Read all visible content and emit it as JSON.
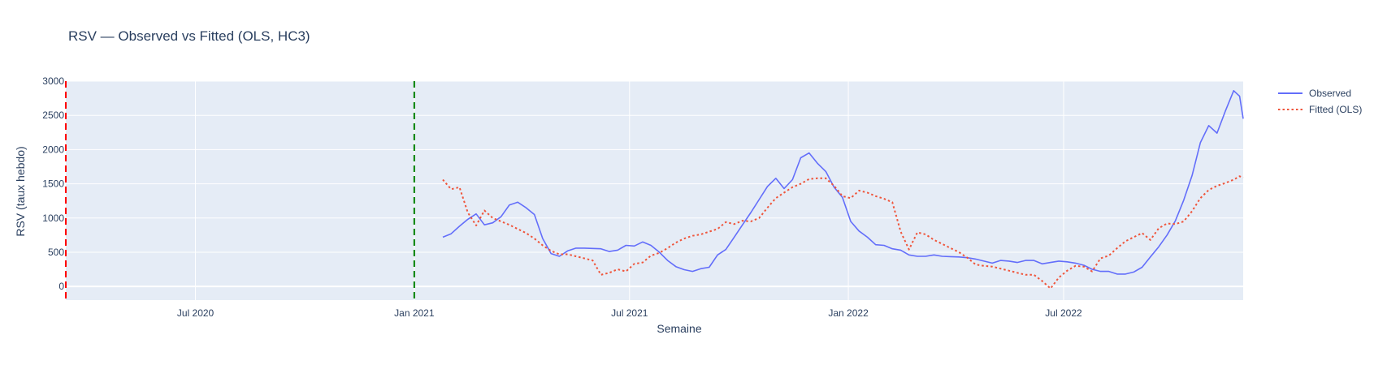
{
  "chart_data": {
    "type": "line",
    "title": "RSV — Observed vs Fitted (OLS, HC3)",
    "xlabel": "Semaine",
    "ylabel": "RSV (taux hebdo)",
    "xlim": [
      "2020-03-14",
      "2022-11-29"
    ],
    "ylim": [
      -200,
      3000
    ],
    "x_ticks": [
      {
        "date": "2020-07-01",
        "label": "Jul 2020"
      },
      {
        "date": "2021-01-01",
        "label": "Jan 2021"
      },
      {
        "date": "2021-07-01",
        "label": "Jul 2021"
      },
      {
        "date": "2022-01-01",
        "label": "Jan 2022"
      },
      {
        "date": "2022-07-01",
        "label": "Jul 2022"
      }
    ],
    "y_ticks": [
      0,
      500,
      1000,
      1500,
      2000,
      2500,
      3000
    ],
    "grid": true,
    "legend_position": "top-right",
    "vertical_lines": [
      {
        "date": "2020-03-14",
        "color": "#ff0000"
      },
      {
        "date": "2021-01-01",
        "color": "#008000"
      }
    ],
    "series": [
      {
        "name": "Observed",
        "color": "#636efa",
        "dash": "solid",
        "points": [
          [
            "2021-01-25",
            720
          ],
          [
            "2021-02-01",
            770
          ],
          [
            "2021-02-08",
            880
          ],
          [
            "2021-02-15",
            980
          ],
          [
            "2021-02-22",
            1060
          ],
          [
            "2021-03-01",
            900
          ],
          [
            "2021-03-08",
            930
          ],
          [
            "2021-03-15",
            1020
          ],
          [
            "2021-03-22",
            1190
          ],
          [
            "2021-03-29",
            1230
          ],
          [
            "2021-04-05",
            1150
          ],
          [
            "2021-04-12",
            1050
          ],
          [
            "2021-04-19",
            700
          ],
          [
            "2021-04-26",
            480
          ],
          [
            "2021-05-03",
            440
          ],
          [
            "2021-05-10",
            520
          ],
          [
            "2021-05-17",
            560
          ],
          [
            "2021-05-24",
            560
          ],
          [
            "2021-05-31",
            555
          ],
          [
            "2021-06-07",
            550
          ],
          [
            "2021-06-14",
            510
          ],
          [
            "2021-06-21",
            530
          ],
          [
            "2021-06-28",
            600
          ],
          [
            "2021-07-05",
            590
          ],
          [
            "2021-07-12",
            650
          ],
          [
            "2021-07-19",
            600
          ],
          [
            "2021-07-26",
            500
          ],
          [
            "2021-08-02",
            380
          ],
          [
            "2021-08-09",
            290
          ],
          [
            "2021-08-16",
            245
          ],
          [
            "2021-08-23",
            220
          ],
          [
            "2021-08-30",
            260
          ],
          [
            "2021-09-06",
            280
          ],
          [
            "2021-09-13",
            460
          ],
          [
            "2021-09-20",
            540
          ],
          [
            "2021-09-27",
            720
          ],
          [
            "2021-10-04",
            900
          ],
          [
            "2021-10-11",
            1080
          ],
          [
            "2021-10-18",
            1270
          ],
          [
            "2021-10-25",
            1460
          ],
          [
            "2021-11-01",
            1580
          ],
          [
            "2021-11-08",
            1430
          ],
          [
            "2021-11-15",
            1560
          ],
          [
            "2021-11-22",
            1880
          ],
          [
            "2021-11-29",
            1950
          ],
          [
            "2021-12-06",
            1800
          ],
          [
            "2021-12-13",
            1680
          ],
          [
            "2021-12-20",
            1450
          ],
          [
            "2021-12-27",
            1300
          ],
          [
            "2022-01-03",
            950
          ],
          [
            "2022-01-10",
            810
          ],
          [
            "2022-01-17",
            720
          ],
          [
            "2022-01-24",
            610
          ],
          [
            "2022-01-31",
            600
          ],
          [
            "2022-02-07",
            550
          ],
          [
            "2022-02-14",
            530
          ],
          [
            "2022-02-21",
            460
          ],
          [
            "2022-02-28",
            440
          ],
          [
            "2022-03-07",
            440
          ],
          [
            "2022-03-14",
            460
          ],
          [
            "2022-03-21",
            440
          ],
          [
            "2022-03-28",
            435
          ],
          [
            "2022-04-04",
            430
          ],
          [
            "2022-04-11",
            420
          ],
          [
            "2022-04-18",
            400
          ],
          [
            "2022-04-25",
            370
          ],
          [
            "2022-05-02",
            340
          ],
          [
            "2022-05-09",
            380
          ],
          [
            "2022-05-16",
            370
          ],
          [
            "2022-05-23",
            350
          ],
          [
            "2022-05-30",
            380
          ],
          [
            "2022-06-06",
            380
          ],
          [
            "2022-06-13",
            330
          ],
          [
            "2022-06-20",
            350
          ],
          [
            "2022-06-27",
            370
          ],
          [
            "2022-07-04",
            360
          ],
          [
            "2022-07-11",
            340
          ],
          [
            "2022-07-18",
            310
          ],
          [
            "2022-07-25",
            250
          ],
          [
            "2022-08-01",
            220
          ],
          [
            "2022-08-08",
            220
          ],
          [
            "2022-08-15",
            180
          ],
          [
            "2022-08-22",
            180
          ],
          [
            "2022-08-29",
            210
          ],
          [
            "2022-09-05",
            280
          ],
          [
            "2022-09-12",
            430
          ],
          [
            "2022-09-19",
            580
          ],
          [
            "2022-09-26",
            750
          ],
          [
            "2022-10-03",
            960
          ],
          [
            "2022-10-10",
            1260
          ],
          [
            "2022-10-17",
            1620
          ],
          [
            "2022-10-24",
            2100
          ],
          [
            "2022-10-31",
            2350
          ],
          [
            "2022-11-07",
            2240
          ],
          [
            "2022-11-14",
            2560
          ],
          [
            "2022-11-21",
            2860
          ],
          [
            "2022-11-26",
            2780
          ],
          [
            "2022-11-29",
            2450
          ]
        ]
      },
      {
        "name": "Fitted (OLS)",
        "color": "#ef553b",
        "dash": "dot",
        "points": [
          [
            "2021-01-25",
            1560
          ],
          [
            "2021-02-01",
            1420
          ],
          [
            "2021-02-08",
            1450
          ],
          [
            "2021-02-15",
            1080
          ],
          [
            "2021-02-22",
            890
          ],
          [
            "2021-03-01",
            1110
          ],
          [
            "2021-03-08",
            1000
          ],
          [
            "2021-03-15",
            950
          ],
          [
            "2021-03-22",
            900
          ],
          [
            "2021-03-29",
            840
          ],
          [
            "2021-04-05",
            780
          ],
          [
            "2021-04-12",
            700
          ],
          [
            "2021-04-19",
            600
          ],
          [
            "2021-04-26",
            520
          ],
          [
            "2021-05-03",
            470
          ],
          [
            "2021-05-10",
            470
          ],
          [
            "2021-05-17",
            440
          ],
          [
            "2021-05-24",
            410
          ],
          [
            "2021-05-31",
            380
          ],
          [
            "2021-06-07",
            170
          ],
          [
            "2021-06-14",
            200
          ],
          [
            "2021-06-21",
            250
          ],
          [
            "2021-06-28",
            220
          ],
          [
            "2021-07-05",
            330
          ],
          [
            "2021-07-12",
            350
          ],
          [
            "2021-07-19",
            450
          ],
          [
            "2021-07-26",
            490
          ],
          [
            "2021-08-02",
            560
          ],
          [
            "2021-08-09",
            640
          ],
          [
            "2021-08-16",
            700
          ],
          [
            "2021-08-23",
            740
          ],
          [
            "2021-08-30",
            760
          ],
          [
            "2021-09-06",
            800
          ],
          [
            "2021-09-13",
            840
          ],
          [
            "2021-09-20",
            940
          ],
          [
            "2021-09-27",
            910
          ],
          [
            "2021-10-04",
            960
          ],
          [
            "2021-10-11",
            950
          ],
          [
            "2021-10-18",
            1000
          ],
          [
            "2021-10-25",
            1150
          ],
          [
            "2021-11-01",
            1290
          ],
          [
            "2021-11-08",
            1370
          ],
          [
            "2021-11-15",
            1450
          ],
          [
            "2021-11-22",
            1500
          ],
          [
            "2021-11-29",
            1570
          ],
          [
            "2021-12-06",
            1580
          ],
          [
            "2021-12-13",
            1580
          ],
          [
            "2021-12-20",
            1470
          ],
          [
            "2021-12-27",
            1320
          ],
          [
            "2022-01-03",
            1290
          ],
          [
            "2022-01-10",
            1400
          ],
          [
            "2022-01-17",
            1370
          ],
          [
            "2022-01-24",
            1320
          ],
          [
            "2022-01-31",
            1280
          ],
          [
            "2022-02-07",
            1230
          ],
          [
            "2022-02-14",
            800
          ],
          [
            "2022-02-21",
            540
          ],
          [
            "2022-02-28",
            790
          ],
          [
            "2022-03-07",
            760
          ],
          [
            "2022-03-14",
            680
          ],
          [
            "2022-03-21",
            620
          ],
          [
            "2022-03-28",
            560
          ],
          [
            "2022-04-04",
            500
          ],
          [
            "2022-04-11",
            420
          ],
          [
            "2022-04-18",
            320
          ],
          [
            "2022-04-25",
            300
          ],
          [
            "2022-05-02",
            290
          ],
          [
            "2022-05-09",
            260
          ],
          [
            "2022-05-16",
            230
          ],
          [
            "2022-05-23",
            200
          ],
          [
            "2022-05-30",
            170
          ],
          [
            "2022-06-06",
            170
          ],
          [
            "2022-06-13",
            80
          ],
          [
            "2022-06-20",
            -30
          ],
          [
            "2022-06-27",
            130
          ],
          [
            "2022-07-04",
            230
          ],
          [
            "2022-07-11",
            300
          ],
          [
            "2022-07-18",
            290
          ],
          [
            "2022-07-25",
            220
          ],
          [
            "2022-08-01",
            410
          ],
          [
            "2022-08-08",
            450
          ],
          [
            "2022-08-15",
            560
          ],
          [
            "2022-08-22",
            660
          ],
          [
            "2022-08-29",
            720
          ],
          [
            "2022-09-05",
            780
          ],
          [
            "2022-09-12",
            680
          ],
          [
            "2022-09-19",
            850
          ],
          [
            "2022-09-26",
            920
          ],
          [
            "2022-10-03",
            910
          ],
          [
            "2022-10-10",
            950
          ],
          [
            "2022-10-17",
            1100
          ],
          [
            "2022-10-24",
            1290
          ],
          [
            "2022-10-31",
            1410
          ],
          [
            "2022-11-07",
            1470
          ],
          [
            "2022-11-14",
            1510
          ],
          [
            "2022-11-21",
            1560
          ],
          [
            "2022-11-26",
            1610
          ],
          [
            "2022-11-29",
            1590
          ]
        ]
      }
    ]
  },
  "colors": {
    "plot_bg": "#e5ecf6",
    "grid": "#ffffff",
    "text": "#2a3f5f"
  }
}
